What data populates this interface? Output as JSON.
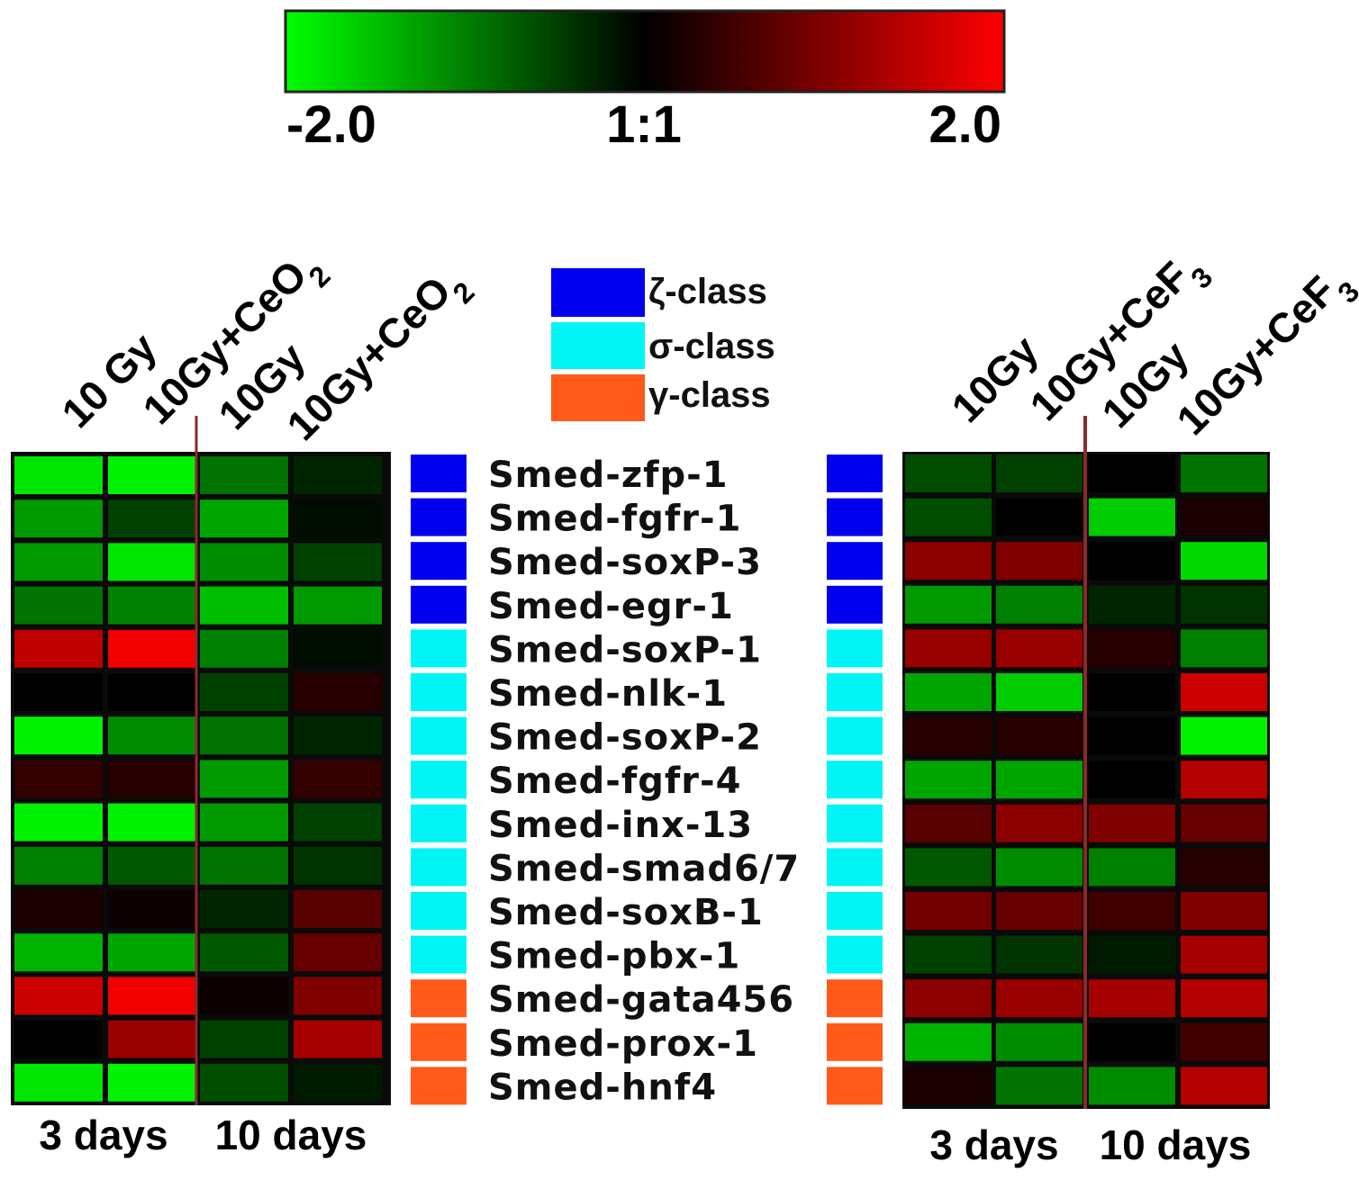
{
  "chart_data": {
    "type": "heatmap",
    "colorbar": {
      "min_label": "-2.0",
      "mid_label": "1:1",
      "max_label": "2.0",
      "range": [
        -2,
        2
      ],
      "colors": {
        "low": "#00ff00",
        "mid": "#000000",
        "high": "#ff0000"
      }
    },
    "legend": {
      "placement": "top-center",
      "items": [
        {
          "label": "ζ-class",
          "color": "#0000ee"
        },
        {
          "label": "σ-class",
          "color": "#00f5f5"
        },
        {
          "label": "γ-class",
          "color": "#ff5a1a"
        }
      ]
    },
    "genes": [
      {
        "name": "Smed-zfp-1",
        "class": "ζ-class"
      },
      {
        "name": "Smed-fgfr-1",
        "class": "ζ-class"
      },
      {
        "name": "Smed-soxP-3",
        "class": "ζ-class"
      },
      {
        "name": "Smed-egr-1",
        "class": "ζ-class"
      },
      {
        "name": "Smed-soxP-1",
        "class": "σ-class"
      },
      {
        "name": "Smed-nlk-1",
        "class": "σ-class"
      },
      {
        "name": "Smed-soxP-2",
        "class": "σ-class"
      },
      {
        "name": "Smed-fgfr-4",
        "class": "σ-class"
      },
      {
        "name": "Smed-inx-13",
        "class": "σ-class"
      },
      {
        "name": "Smed-smad6/7",
        "class": "σ-class"
      },
      {
        "name": "Smed-soxB-1",
        "class": "σ-class"
      },
      {
        "name": "Smed-pbx-1",
        "class": "σ-class"
      },
      {
        "name": "Smed-gata456",
        "class": "γ-class"
      },
      {
        "name": "Smed-prox-1",
        "class": "γ-class"
      },
      {
        "name": "Smed-hnf4",
        "class": "γ-class"
      }
    ],
    "panels": [
      {
        "columns": [
          "10 Gy",
          "10Gy+CeO",
          "10Gy",
          "10Gy+CeO"
        ],
        "column_subscript": "2",
        "column_subscript_on": [
          false,
          true,
          false,
          true
        ],
        "time_labels": [
          "3 days",
          "10 days"
        ],
        "values": [
          [
            -1.8,
            -1.9,
            -0.9,
            -0.3
          ],
          [
            -1.2,
            -0.5,
            -1.3,
            -0.1
          ],
          [
            -1.2,
            -1.8,
            -1.1,
            -0.5
          ],
          [
            -0.9,
            -1.0,
            -1.5,
            -1.2
          ],
          [
            1.5,
            1.9,
            -1.0,
            -0.1
          ],
          [
            0.0,
            0.0,
            -0.5,
            0.3
          ],
          [
            -1.9,
            -1.1,
            -0.9,
            -0.3
          ],
          [
            0.4,
            0.3,
            -1.2,
            0.4
          ],
          [
            -1.9,
            -1.9,
            -1.2,
            -0.5
          ],
          [
            -1.0,
            -0.7,
            -0.9,
            -0.4
          ],
          [
            0.2,
            0.1,
            -0.3,
            0.7
          ],
          [
            -1.4,
            -1.3,
            -0.7,
            0.8
          ],
          [
            1.6,
            1.9,
            0.1,
            1.0
          ],
          [
            0.0,
            1.2,
            -0.5,
            1.3
          ],
          [
            -1.8,
            -1.9,
            -0.6,
            -0.2
          ]
        ]
      },
      {
        "columns": [
          "10Gy",
          "10Gy+CeF",
          "10Gy",
          "10Gy+CeF"
        ],
        "column_subscript": "3",
        "column_subscript_on": [
          false,
          true,
          false,
          true
        ],
        "time_labels": [
          "3 days",
          "10 days"
        ],
        "values": [
          [
            -0.6,
            -0.5,
            0.0,
            -0.9
          ],
          [
            -0.6,
            0.0,
            -1.6,
            0.2
          ],
          [
            1.1,
            1.0,
            0.0,
            -1.7
          ],
          [
            -1.2,
            -1.0,
            -0.3,
            -0.4
          ],
          [
            1.2,
            1.2,
            0.3,
            -1.0
          ],
          [
            -1.3,
            -1.6,
            0.0,
            1.6
          ],
          [
            0.3,
            0.3,
            0.0,
            -1.9
          ],
          [
            -1.3,
            -1.3,
            0.0,
            1.4
          ],
          [
            0.7,
            1.1,
            1.0,
            0.8
          ],
          [
            -0.7,
            -1.1,
            -1.0,
            0.3
          ],
          [
            0.9,
            0.8,
            0.5,
            1.0
          ],
          [
            -0.5,
            -0.4,
            -0.2,
            1.3
          ],
          [
            1.1,
            1.2,
            1.3,
            1.4
          ],
          [
            -1.4,
            -1.1,
            0.0,
            0.5
          ],
          [
            0.2,
            -0.9,
            -1.1,
            1.4
          ]
        ]
      }
    ]
  }
}
